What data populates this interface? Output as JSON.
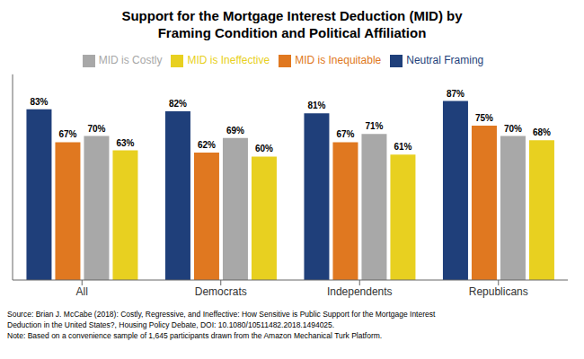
{
  "chart_data": {
    "type": "bar",
    "title": "Support for the Mortgage Interest Deduction (MID) by\nFraming Condition and Political Affiliation",
    "categories": [
      "All",
      "Democrats",
      "Independents",
      "Republicans"
    ],
    "series": [
      {
        "name": "Neutral Framing",
        "color": "#1F3F7A",
        "values": [
          83,
          82,
          81,
          87
        ],
        "value_labels": [
          "83%",
          "82%",
          "81%",
          "87%"
        ]
      },
      {
        "name": "MID is Inequitable",
        "color": "#E07820",
        "values": [
          67,
          62,
          67,
          75
        ],
        "value_labels": [
          "67%",
          "62%",
          "67%",
          "75%"
        ]
      },
      {
        "name": "MID is Costly",
        "color": "#A8A8A8",
        "values": [
          70,
          69,
          71,
          70
        ],
        "value_labels": [
          "70%",
          "69%",
          "71%",
          "70%"
        ]
      },
      {
        "name": "MID is Ineffective",
        "color": "#E8D020",
        "values": [
          63,
          60,
          61,
          68
        ],
        "value_labels": [
          "63%",
          "60%",
          "61%",
          "68%"
        ]
      }
    ],
    "ylim": [
      0,
      100
    ],
    "data_labels": true,
    "tick_labels": "x",
    "grid": false,
    "legend": "top",
    "annotations": [
      "Source: Brian J. McCabe (2018): Costly, Regressive, and Ineffective: How Sensitive is Public Support for the Mortgage Interest\nDeduction in the United States?, Housing Policy Debate, DOI: 10.1080/10511482.2018.1494025.\nNote: Based on a convenience sample of 1,645 participants drawn from the Amazon Mechanical Turk Platform."
    ]
  }
}
